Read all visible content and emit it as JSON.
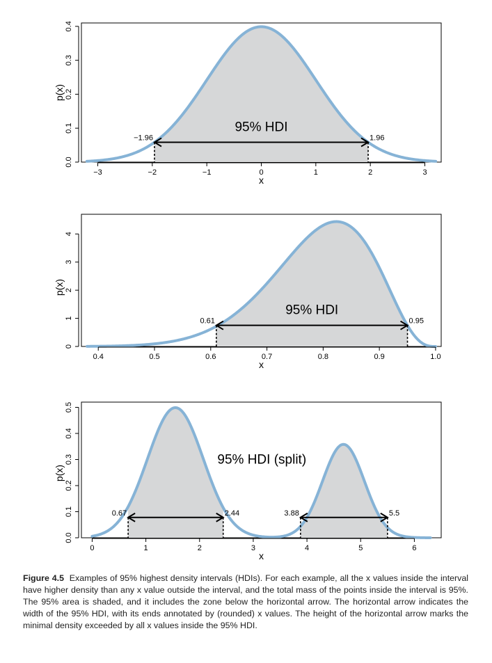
{
  "caption": {
    "label": "Figure 4.5",
    "text": "Examples of 95% highest density intervals (HDIs). For each example, all the x values inside the interval have higher density than any x value outside the interval, and the total mass of the points inside the interval is 95%. The 95% area is shaded, and it includes the zone below the horizontal arrow. The horizontal arrow indicates the width of the 95% HDI, with its ends annotated by (rounded) x values. The height of the horizontal arrow marks the minimal density exceeded by all x values inside the 95% HDI."
  },
  "colors": {
    "curve": "#86b3d6",
    "shade": "#d6d7d8"
  },
  "chart_data": [
    {
      "type": "area",
      "curve": "normal",
      "params": {
        "mean": 0,
        "sd": 1
      },
      "x_range": [
        -3.2,
        3.2
      ],
      "xlabel": "x",
      "ylabel": "p(x)",
      "xlim": [
        -3.3,
        3.3
      ],
      "ylim": [
        0,
        0.41
      ],
      "x_ticks": [
        -3,
        -2,
        -1,
        0,
        1,
        2,
        3
      ],
      "x_tick_labels": [
        "−3",
        "−2",
        "−1",
        "0",
        "1",
        "2",
        "3"
      ],
      "y_ticks": [
        0.0,
        0.1,
        0.2,
        0.3,
        0.4
      ],
      "y_tick_labels": [
        "0.0",
        "0.1",
        "0.2",
        "0.3",
        "0.4"
      ],
      "hdi_label": "95% HDI",
      "hdi_intervals": [
        [
          -1.96,
          1.96
        ]
      ],
      "hdi_end_labels": [
        "−1.96",
        "1.96"
      ],
      "hdi_height": 0.0584
    },
    {
      "type": "area",
      "curve": "beta",
      "params": {
        "a": 15,
        "b": 4
      },
      "x_range": [
        0.38,
        1.0
      ],
      "xlabel": "x",
      "ylabel": "p(x)",
      "xlim": [
        0.37,
        1.01
      ],
      "ylim": [
        0,
        4.7
      ],
      "x_ticks": [
        0.4,
        0.5,
        0.6,
        0.7,
        0.8,
        0.9,
        1.0
      ],
      "x_tick_labels": [
        "0.4",
        "0.5",
        "0.6",
        "0.7",
        "0.8",
        "0.9",
        "1.0"
      ],
      "y_ticks": [
        0,
        1,
        2,
        3,
        4
      ],
      "y_tick_labels": [
        "0",
        "1",
        "2",
        "3",
        "4"
      ],
      "hdi_label": "95% HDI",
      "hdi_intervals": [
        [
          0.61,
          0.95
        ]
      ],
      "hdi_end_labels": [
        "0.61",
        "0.95"
      ],
      "hdi_height": 0.75
    },
    {
      "type": "area",
      "curve": "bimodal",
      "params": {
        "components": [
          {
            "weight": 0.65,
            "mean": 1.55,
            "sd": 0.52
          },
          {
            "weight": 0.35,
            "mean": 4.68,
            "sd": 0.39
          }
        ]
      },
      "x_range": [
        0,
        6.3
      ],
      "xlabel": "x",
      "ylabel": "p(x)",
      "xlim": [
        -0.2,
        6.5
      ],
      "ylim": [
        0,
        0.52
      ],
      "x_ticks": [
        0,
        1,
        2,
        3,
        4,
        5,
        6
      ],
      "x_tick_labels": [
        "0",
        "1",
        "2",
        "3",
        "4",
        "5",
        "6"
      ],
      "y_ticks": [
        0.0,
        0.1,
        0.2,
        0.3,
        0.4,
        0.5
      ],
      "y_tick_labels": [
        "0.0",
        "0.1",
        "0.2",
        "0.3",
        "0.4",
        "0.5"
      ],
      "hdi_label": "95% HDI (split)",
      "hdi_intervals": [
        [
          0.67,
          2.44
        ],
        [
          3.88,
          5.5
        ]
      ],
      "hdi_end_labels": [
        "0.67",
        "2.44",
        "3.88",
        "5.5"
      ],
      "hdi_height": 0.078
    }
  ]
}
